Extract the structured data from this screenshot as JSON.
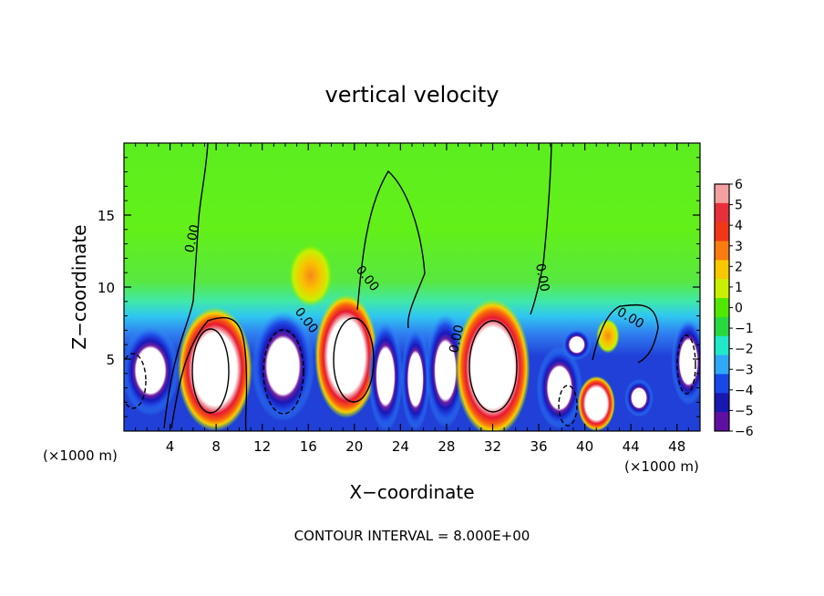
{
  "chart_data": {
    "type": "heatmap",
    "title": "vertical velocity",
    "xlabel": "X−coordinate",
    "ylabel": "Z−coordinate",
    "x_unit_left": "(×1000 m)",
    "x_unit_right": "(×1000 m)",
    "footer": "CONTOUR INTERVAL = 8.000E+00",
    "xlim": [
      0,
      50
    ],
    "ylim": [
      0,
      20
    ],
    "x_ticks": [
      {
        "value": 4,
        "label": "4"
      },
      {
        "value": 8,
        "label": "8"
      },
      {
        "value": 12,
        "label": "12"
      },
      {
        "value": 16,
        "label": "16"
      },
      {
        "value": 20,
        "label": "20"
      },
      {
        "value": 24,
        "label": "24"
      },
      {
        "value": 28,
        "label": "28"
      },
      {
        "value": 32,
        "label": "32"
      },
      {
        "value": 36,
        "label": "36"
      },
      {
        "value": 40,
        "label": "40"
      },
      {
        "value": 44,
        "label": "44"
      },
      {
        "value": 48,
        "label": "48"
      }
    ],
    "y_ticks": [
      {
        "value": 5,
        "label": "5"
      },
      {
        "value": 10,
        "label": "10"
      },
      {
        "value": 15,
        "label": "15"
      }
    ],
    "colorbar": {
      "min": -6,
      "max": 6,
      "labels": [
        "6",
        "5",
        "4",
        "3",
        "2",
        "1",
        "0",
        "−1",
        "−2",
        "−3",
        "−4",
        "−5",
        "−6"
      ],
      "colors": [
        "#f4a0a0",
        "#e8303c",
        "#f03818",
        "#f87c10",
        "#f8c800",
        "#c8f000",
        "#50e800",
        "#28d840",
        "#20e8c8",
        "#30a8f8",
        "#1848e8",
        "#1818b0",
        "#6010a0"
      ]
    },
    "contour_labels": [
      "0.00",
      "0.00",
      "0.00",
      "0.00",
      "0.00",
      "0.00"
    ],
    "cells": [
      {
        "x": 2.3,
        "z": 4.2,
        "sign": "down",
        "peak": -6.5,
        "rx": 2.0,
        "rz": 2.6
      },
      {
        "x": 7.9,
        "z": 4.3,
        "sign": "up",
        "peak": 9,
        "rx": 2.6,
        "rz": 3.6
      },
      {
        "x": 13.8,
        "z": 4.5,
        "sign": "down",
        "peak": -7,
        "rx": 2.2,
        "rz": 3.2
      },
      {
        "x": 19.3,
        "z": 5.2,
        "sign": "up",
        "peak": 9,
        "rx": 2.2,
        "rz": 3.6
      },
      {
        "x": 22.7,
        "z": 3.8,
        "sign": "down",
        "peak": -6,
        "rx": 1.2,
        "rz": 3.2
      },
      {
        "x": 25.3,
        "z": 3.6,
        "sign": "down",
        "peak": -6,
        "rx": 1.0,
        "rz": 3.0
      },
      {
        "x": 27.9,
        "z": 4.2,
        "sign": "down",
        "peak": -6,
        "rx": 1.4,
        "rz": 3.3
      },
      {
        "x": 32.0,
        "z": 4.4,
        "sign": "up",
        "peak": 9,
        "rx": 2.6,
        "rz": 4.0
      },
      {
        "x": 37.8,
        "z": 3.0,
        "sign": "down",
        "peak": -6.5,
        "rx": 1.6,
        "rz": 2.4
      },
      {
        "x": 39.3,
        "z": 6.0,
        "sign": "down",
        "peak": -6.5,
        "rx": 1.0,
        "rz": 0.9
      },
      {
        "x": 41.0,
        "z": 1.9,
        "sign": "up",
        "peak": 7,
        "rx": 1.3,
        "rz": 1.6
      },
      {
        "x": 44.7,
        "z": 2.3,
        "sign": "down",
        "peak": -6,
        "rx": 1.0,
        "rz": 1.1
      },
      {
        "x": 49.0,
        "z": 4.8,
        "sign": "down",
        "peak": -6.5,
        "rx": 1.2,
        "rz": 2.5
      },
      {
        "x": 16.2,
        "z": 10.8,
        "sign": "up",
        "peak": 3.2,
        "rx": 1.5,
        "rz": 1.8
      },
      {
        "x": 42.0,
        "z": 6.6,
        "sign": "up",
        "peak": 2.5,
        "rx": 0.8,
        "rz": 1.0
      }
    ]
  }
}
